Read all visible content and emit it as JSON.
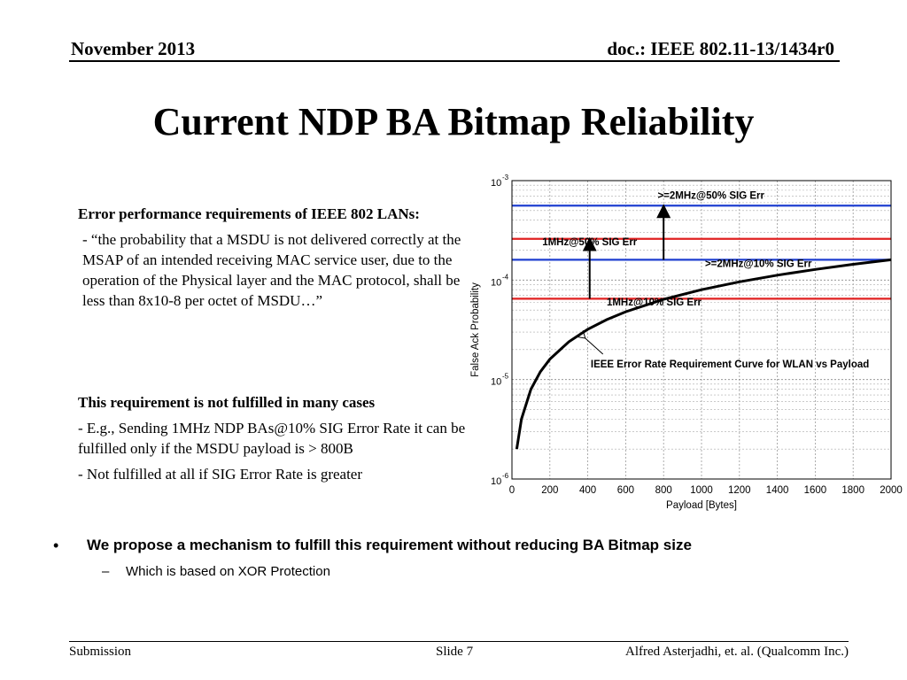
{
  "header": {
    "date": "November 2013",
    "doc": "doc.: IEEE 802.11-13/1434r0"
  },
  "title": "Current NDP BA Bitmap Reliability",
  "requirement": {
    "heading": "Error performance requirements of IEEE 802 LANs:",
    "quote": "- “the probability that a MSDU is not delivered correctly at the MSAP of an intended receiving MAC service user, due to the operation of the Physical layer and the MAC protocol, shall be less than 8x10-8 per octet of MSDU…”"
  },
  "not_fulfilled": {
    "heading": "This requirement is not fulfilled in many cases",
    "item1": "- E.g., Sending 1MHz NDP BAs@10% SIG Error Rate it can be fulfilled only if the MSDU payload is > 800B",
    "item2": "- Not fulfilled at all if SIG Error Rate is greater"
  },
  "bullets": {
    "dot": "•",
    "main": "We propose a mechanism to fulfill this requirement without reducing BA Bitmap size",
    "sub_dash": "–",
    "sub": "Which is based on XOR Protection"
  },
  "footer": {
    "left": "Submission",
    "center": "Slide 7",
    "right": "Alfred Asterjadhi, et. al. (Qualcomm Inc.)"
  },
  "chart_data": {
    "type": "line",
    "xlabel": "Payload [Bytes]",
    "ylabel": "False Ack Probability",
    "xlim": [
      0,
      2000
    ],
    "ylim": [
      1e-06,
      0.001
    ],
    "yscale": "log",
    "grid": true,
    "x_ticks": [
      "0",
      "200",
      "400",
      "600",
      "800",
      "1000",
      "1200",
      "1400",
      "1600",
      "1800",
      "2000"
    ],
    "y_ticks": [
      {
        "base": "10",
        "exp": "-3",
        "value": 0.001
      },
      {
        "base": "10",
        "exp": "-4",
        "value": 0.0001
      },
      {
        "base": "10",
        "exp": "-5",
        "value": 1e-05
      },
      {
        "base": "10",
        "exp": "-6",
        "value": 1e-06
      }
    ],
    "curve": {
      "name": "IEEE Error Rate Requirement  Curve for WLAN vs Payload",
      "color": "#000000",
      "x": [
        25,
        50,
        100,
        150,
        200,
        300,
        400,
        500,
        600,
        800,
        1000,
        1200,
        1400,
        1600,
        1800,
        2000
      ],
      "y": [
        2e-06,
        4e-06,
        8e-06,
        1.2e-05,
        1.6e-05,
        2.4e-05,
        3.2e-05,
        4e-05,
        4.8e-05,
        6.4e-05,
        8e-05,
        9.6e-05,
        0.000112,
        0.000128,
        0.000144,
        0.00016
      ]
    },
    "hlines": [
      {
        "label": ">=2MHz@50% SIG Err",
        "y": 0.00056,
        "color": "#1f3fd0"
      },
      {
        "label": "1MHz@50% SIG Err",
        "y": 0.00026,
        "color": "#e02020"
      },
      {
        "label": ">=2MHz@10% SIG Err",
        "y": 0.00016,
        "color": "#1f3fd0"
      },
      {
        "label": "1MHz@10% SIG Err",
        "y": 6.5e-05,
        "color": "#e02020"
      }
    ],
    "annotations": [
      {
        "text": ">=2MHz@50% SIG Err",
        "x": 1050,
        "y": 0.00066
      },
      {
        "text": "1MHz@50% SIG Err",
        "x": 410,
        "y": 0.000225
      },
      {
        "text": ">=2MHz@10% SIG Err",
        "x": 1300,
        "y": 0.000136
      },
      {
        "text": "1MHz@10% SIG Err",
        "x": 750,
        "y": 5.55e-05
      },
      {
        "text": "IEEE Error Rate Requirement  Curve for WLAN vs Payload",
        "x": 1150,
        "y": 1.33e-05
      }
    ],
    "arrows": [
      {
        "x": 800,
        "from": 0.00016,
        "to": 0.00056
      },
      {
        "x": 410,
        "from": 6.5e-05,
        "to": 0.00026
      },
      {
        "x": 340,
        "from": 1.8e-05,
        "to": 2.6e-05
      }
    ]
  }
}
